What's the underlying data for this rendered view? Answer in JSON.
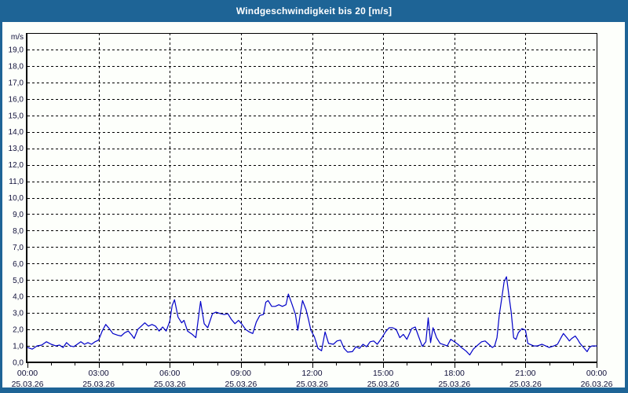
{
  "window": {
    "title": "Windgeschwindigkeit bis 20 [m/s]"
  },
  "colors": {
    "titlebar": "#1e6496",
    "frame": "#1e6496",
    "plot_bg": "#fdfffb",
    "grid": "#000000",
    "axis": "#000000",
    "text": "#10103a",
    "line": "#0000c8"
  },
  "chart_data": {
    "type": "line",
    "title": "Windgeschwindigkeit bis 20 [m/s]",
    "y_unit_label": "m/s",
    "ylim": [
      0,
      20
    ],
    "y_tick_step": 1,
    "y_tick_labels": [
      "0,0",
      "1,0",
      "2,0",
      "3,0",
      "4,0",
      "5,0",
      "6,0",
      "7,0",
      "8,0",
      "9,0",
      "10,0",
      "11,0",
      "12,0",
      "13,0",
      "14,0",
      "15,0",
      "16,0",
      "17,0",
      "18,0",
      "19,0"
    ],
    "x_hours_range": [
      0,
      24
    ],
    "x_minor_tick_every_hours": 1,
    "x_major_ticks": [
      {
        "hour": 0,
        "time": "00:00",
        "date": "25.03.26"
      },
      {
        "hour": 3,
        "time": "03:00",
        "date": "25.03.26"
      },
      {
        "hour": 6,
        "time": "06:00",
        "date": "25.03.26"
      },
      {
        "hour": 9,
        "time": "09:00",
        "date": "25.03.26"
      },
      {
        "hour": 12,
        "time": "12:00",
        "date": "25.03.26"
      },
      {
        "hour": 15,
        "time": "15:00",
        "date": "25.03.26"
      },
      {
        "hour": 18,
        "time": "18:00",
        "date": "25.03.26"
      },
      {
        "hour": 21,
        "time": "21:00",
        "date": "25.03.26"
      },
      {
        "hour": 24,
        "time": "00:00",
        "date": "26.03.26"
      }
    ],
    "grid": {
      "horizontal_step": 1,
      "vertical_step_hours": 3,
      "style": "dashed",
      "on": true
    },
    "legend": "none",
    "series": [
      {
        "name": "Windgeschwindigkeit",
        "unit": "m/s",
        "color": "#0000c8",
        "points": [
          [
            0,
            0.9
          ],
          [
            0.2,
            0.8
          ],
          [
            0.4,
            1.0
          ],
          [
            0.6,
            1.05
          ],
          [
            0.8,
            1.25
          ],
          [
            1.0,
            1.1
          ],
          [
            1.2,
            1.0
          ],
          [
            1.35,
            1.05
          ],
          [
            1.5,
            0.9
          ],
          [
            1.65,
            1.2
          ],
          [
            1.8,
            1.0
          ],
          [
            1.95,
            0.95
          ],
          [
            2.1,
            1.1
          ],
          [
            2.25,
            1.25
          ],
          [
            2.4,
            1.1
          ],
          [
            2.55,
            1.2
          ],
          [
            2.7,
            1.1
          ],
          [
            2.85,
            1.25
          ],
          [
            3.0,
            1.35
          ],
          [
            3.15,
            1.9
          ],
          [
            3.3,
            2.3
          ],
          [
            3.45,
            2.05
          ],
          [
            3.6,
            1.75
          ],
          [
            3.8,
            1.65
          ],
          [
            3.95,
            1.6
          ],
          [
            4.1,
            1.8
          ],
          [
            4.25,
            1.9
          ],
          [
            4.4,
            1.65
          ],
          [
            4.5,
            1.45
          ],
          [
            4.65,
            2.0
          ],
          [
            4.8,
            2.2
          ],
          [
            4.95,
            2.4
          ],
          [
            5.1,
            2.2
          ],
          [
            5.25,
            2.3
          ],
          [
            5.4,
            2.2
          ],
          [
            5.55,
            1.9
          ],
          [
            5.7,
            2.15
          ],
          [
            5.85,
            1.9
          ],
          [
            6.0,
            2.5
          ],
          [
            6.1,
            3.45
          ],
          [
            6.2,
            3.8
          ],
          [
            6.35,
            2.75
          ],
          [
            6.5,
            2.4
          ],
          [
            6.6,
            2.55
          ],
          [
            6.75,
            1.9
          ],
          [
            6.95,
            1.7
          ],
          [
            7.1,
            1.5
          ],
          [
            7.3,
            3.7
          ],
          [
            7.45,
            2.35
          ],
          [
            7.6,
            2.1
          ],
          [
            7.8,
            2.95
          ],
          [
            7.95,
            3.05
          ],
          [
            8.15,
            2.95
          ],
          [
            8.3,
            2.9
          ],
          [
            8.45,
            2.95
          ],
          [
            8.6,
            2.6
          ],
          [
            8.75,
            2.35
          ],
          [
            8.9,
            2.55
          ],
          [
            9.05,
            2.3
          ],
          [
            9.2,
            2.0
          ],
          [
            9.35,
            1.85
          ],
          [
            9.5,
            1.75
          ],
          [
            9.65,
            2.45
          ],
          [
            9.8,
            2.85
          ],
          [
            9.95,
            2.9
          ],
          [
            10.05,
            3.65
          ],
          [
            10.15,
            3.75
          ],
          [
            10.3,
            3.4
          ],
          [
            10.45,
            3.4
          ],
          [
            10.6,
            3.5
          ],
          [
            10.75,
            3.4
          ],
          [
            10.9,
            3.5
          ],
          [
            11.0,
            4.15
          ],
          [
            11.15,
            3.55
          ],
          [
            11.3,
            2.9
          ],
          [
            11.4,
            1.95
          ],
          [
            11.5,
            2.9
          ],
          [
            11.6,
            3.75
          ],
          [
            11.75,
            3.2
          ],
          [
            11.85,
            2.6
          ],
          [
            11.95,
            1.95
          ],
          [
            12.1,
            1.55
          ],
          [
            12.25,
            0.85
          ],
          [
            12.4,
            0.7
          ],
          [
            12.55,
            1.85
          ],
          [
            12.7,
            1.15
          ],
          [
            12.9,
            1.1
          ],
          [
            13.05,
            1.3
          ],
          [
            13.2,
            1.35
          ],
          [
            13.35,
            0.85
          ],
          [
            13.5,
            0.62
          ],
          [
            13.7,
            0.65
          ],
          [
            13.85,
            0.95
          ],
          [
            14.0,
            0.85
          ],
          [
            14.15,
            1.1
          ],
          [
            14.3,
            0.95
          ],
          [
            14.45,
            1.25
          ],
          [
            14.6,
            1.3
          ],
          [
            14.75,
            1.1
          ],
          [
            14.95,
            1.5
          ],
          [
            15.1,
            1.85
          ],
          [
            15.25,
            2.1
          ],
          [
            15.4,
            2.1
          ],
          [
            15.55,
            2.0
          ],
          [
            15.7,
            1.5
          ],
          [
            15.85,
            1.7
          ],
          [
            16.0,
            1.4
          ],
          [
            16.2,
            2.05
          ],
          [
            16.35,
            2.15
          ],
          [
            16.5,
            1.55
          ],
          [
            16.65,
            0.97
          ],
          [
            16.8,
            1.25
          ],
          [
            16.9,
            2.7
          ],
          [
            17.0,
            1.2
          ],
          [
            17.1,
            2.1
          ],
          [
            17.25,
            1.5
          ],
          [
            17.4,
            1.15
          ],
          [
            17.55,
            1.08
          ],
          [
            17.7,
            1.0
          ],
          [
            17.85,
            1.4
          ],
          [
            18.0,
            1.25
          ],
          [
            18.15,
            1.1
          ],
          [
            18.3,
            0.9
          ],
          [
            18.5,
            0.68
          ],
          [
            18.65,
            0.45
          ],
          [
            18.8,
            0.8
          ],
          [
            18.95,
            1.0
          ],
          [
            19.15,
            1.25
          ],
          [
            19.3,
            1.3
          ],
          [
            19.45,
            1.1
          ],
          [
            19.6,
            0.9
          ],
          [
            19.7,
            1.0
          ],
          [
            19.8,
            1.5
          ],
          [
            19.9,
            2.9
          ],
          [
            20.0,
            3.9
          ],
          [
            20.1,
            4.9
          ],
          [
            20.2,
            5.2
          ],
          [
            20.3,
            4.1
          ],
          [
            20.4,
            3.05
          ],
          [
            20.5,
            1.5
          ],
          [
            20.6,
            1.4
          ],
          [
            20.7,
            1.8
          ],
          [
            20.85,
            2.05
          ],
          [
            21.0,
            1.95
          ],
          [
            21.1,
            1.15
          ],
          [
            21.35,
            1.0
          ],
          [
            21.5,
            1.0
          ],
          [
            21.7,
            1.1
          ],
          [
            21.85,
            1.0
          ],
          [
            22.0,
            0.9
          ],
          [
            22.2,
            1.0
          ],
          [
            22.35,
            1.1
          ],
          [
            22.5,
            1.5
          ],
          [
            22.6,
            1.75
          ],
          [
            22.75,
            1.5
          ],
          [
            22.85,
            1.3
          ],
          [
            22.95,
            1.45
          ],
          [
            23.1,
            1.6
          ],
          [
            23.2,
            1.4
          ],
          [
            23.3,
            1.15
          ],
          [
            23.45,
            0.9
          ],
          [
            23.6,
            0.65
          ],
          [
            23.7,
            0.9
          ],
          [
            23.8,
            1.0
          ],
          [
            24.0,
            1.0
          ]
        ]
      }
    ]
  }
}
